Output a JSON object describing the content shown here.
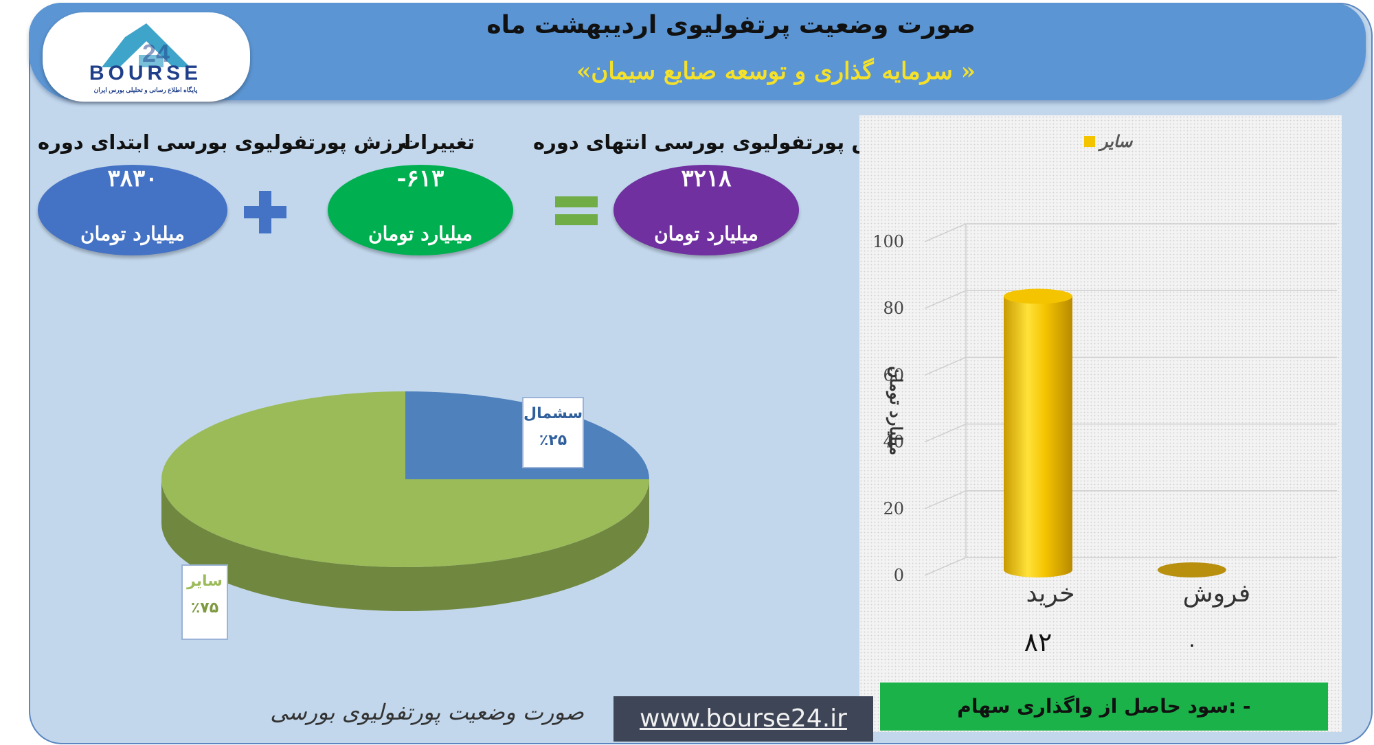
{
  "header": {
    "title": "صورت وضعیت پرتفولیوی اردیبهشت ماه",
    "subtitle": "«سرمایه گذاری و توسعه صنایع سیمان »"
  },
  "logo": {
    "brand": "BOURSE",
    "number": "24",
    "tagline": "پایگاه اطلاع رسانی و تحلیلی بورس ایران"
  },
  "summary": {
    "start": {
      "label": "ارزش پورتفولیوی بورسی ابتدای دوره",
      "value": "۳۸۳۰",
      "unit": "میلیارد تومان",
      "color": "#4472c4"
    },
    "change": {
      "label": "تغییرات",
      "value": "-۶۱۳",
      "unit": "میلیارد تومان",
      "color": "#00b050"
    },
    "end": {
      "label": "ارزش پورتفولیوی بورسی انتهای دوره",
      "value": "۳۲۱۸",
      "unit": "میلیارد تومان",
      "color": "#7030a0"
    },
    "plus_color": "#4472c4",
    "equals_color": "#70ad47"
  },
  "chart_data": [
    {
      "type": "pie",
      "labels": [
        "سشمال",
        "سایر"
      ],
      "values": [
        25,
        75
      ],
      "value_labels": [
        "٪۲۵",
        "٪۷۵"
      ],
      "colors": [
        "#4f81bd",
        "#9bbb59"
      ],
      "title": ""
    },
    {
      "type": "bar",
      "categories": [
        "خرید",
        "فروش"
      ],
      "series": [
        {
          "name": "سایر",
          "values": [
            82,
            0
          ],
          "color": "#f5c400"
        }
      ],
      "data_labels": [
        "۸۲",
        "۰"
      ],
      "ylabel": "میلیارد تومان",
      "ylim": [
        0,
        100
      ],
      "yticks": [
        "0",
        "20",
        "40",
        "60",
        "80",
        "100"
      ],
      "grid": true,
      "legend": "top"
    }
  ],
  "footer": {
    "caption": "صورت وضعیت پورتفولیوی بورسی",
    "website": "www.bourse24.ir",
    "profit_label": "سود حاصل از واگذاری سهام: -"
  }
}
